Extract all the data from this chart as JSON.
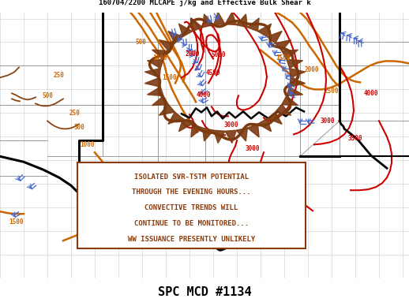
{
  "title_top": "160704/2200 MLCAPE j/kg and Effective Bulk Shear k",
  "title_bottom": "SPC MCD #1134",
  "text_box_lines": [
    "ISOLATED SVR-TSTM POTENTIAL",
    "THROUGH THE EVENING HOURS...",
    "CONVECTIVE TRENDS WILL",
    "CONTINUE TO BE MONITORED...",
    "WW ISSUANCE PRESENTLY UNLIKELY"
  ],
  "text_box_color": "#8B3A0A",
  "red": "#CC0000",
  "orange": "#CC6600",
  "brown": "#7B3A10",
  "blue": "#4466CC",
  "black": "#000000",
  "gray": "#999999",
  "lgray": "#cccccc"
}
